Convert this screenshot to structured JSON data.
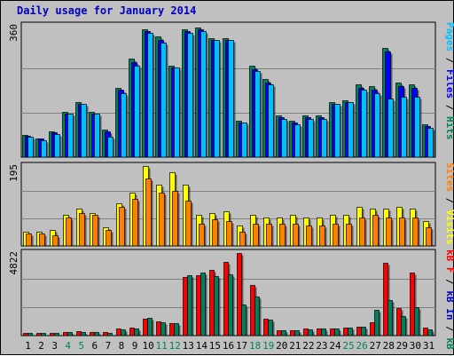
{
  "chart_data": {
    "title": "Daily usage for January 2014",
    "type": "bar",
    "categories": [
      "1",
      "2",
      "3",
      "4",
      "5",
      "6",
      "7",
      "8",
      "9",
      "10",
      "11",
      "12",
      "13",
      "14",
      "15",
      "16",
      "17",
      "18",
      "19",
      "20",
      "21",
      "22",
      "23",
      "24",
      "25",
      "26",
      "27",
      "28",
      "29",
      "30",
      "31"
    ],
    "weekend_days": [
      "4",
      "5",
      "11",
      "12",
      "18",
      "19",
      "25",
      "26"
    ],
    "colors": {
      "hits": "#00805c",
      "files": "#0000ff",
      "pages": "#00c0ff",
      "visits": "#ffff00",
      "sites": "#ff8000",
      "kb_out": "#ff0000",
      "kb_in": "#00805c",
      "kb_f": "#ff0000",
      "title": "#0000c0",
      "weekend_label": "#00805c",
      "weekday_label": "#000000",
      "panel": "#c0c0c0",
      "grid": "#808080"
    },
    "panels": [
      {
        "ymax_label": "360",
        "ylim": [
          0,
          360
        ],
        "right_labels": [
          {
            "text": "Pages",
            "color": "#00c0ff"
          },
          {
            "text": " / ",
            "color": "#000000"
          },
          {
            "text": "Files",
            "color": "#0000ff"
          },
          {
            "text": " / ",
            "color": "#000000"
          },
          {
            "text": "Hits",
            "color": "#00805c"
          }
        ],
        "series": [
          {
            "name": "Hits",
            "color": "#00805c",
            "values": [
              60,
              52,
              70,
              125,
              150,
              125,
              75,
              190,
              270,
              350,
              330,
              250,
              350,
              355,
              325,
              325,
              100,
              250,
              215,
              115,
              100,
              115,
              115,
              150,
              155,
              200,
              195,
              300,
              205,
              200,
              90
            ]
          },
          {
            "name": "Files",
            "color": "#0000ff",
            "values": [
              58,
              50,
              68,
              120,
              145,
              120,
              70,
              185,
              260,
              345,
              320,
              245,
              345,
              350,
              320,
              320,
              95,
              240,
              205,
              110,
              95,
              110,
              110,
              145,
              150,
              190,
              185,
              290,
              195,
              190,
              85
            ]
          },
          {
            "name": "Pages",
            "color": "#00c0ff",
            "values": [
              55,
              47,
              63,
              118,
              145,
              118,
              55,
              175,
              250,
              340,
              315,
              245,
              340,
              345,
              320,
              320,
              95,
              235,
              200,
              105,
              90,
              105,
              105,
              145,
              150,
              185,
              175,
              160,
              165,
              165,
              80
            ]
          }
        ]
      },
      {
        "ymax_label": "195",
        "ylim": [
          0,
          195
        ],
        "right_labels": [
          {
            "text": "Sites",
            "color": "#ff8000"
          },
          {
            "text": " / ",
            "color": "#000000"
          },
          {
            "text": "Visits",
            "color": "#ffff00"
          }
        ],
        "series": [
          {
            "name": "Visits",
            "color": "#ffff00",
            "values": [
              35,
              35,
              40,
              75,
              90,
              80,
              45,
              105,
              130,
              195,
              150,
              180,
              150,
              75,
              80,
              85,
              50,
              75,
              70,
              70,
              75,
              70,
              70,
              75,
              75,
              95,
              90,
              90,
              95,
              90,
              60
            ]
          },
          {
            "name": "Sites",
            "color": "#ff8000",
            "values": [
              30,
              30,
              25,
              70,
              80,
              75,
              40,
              95,
              115,
              165,
              130,
              135,
              110,
              55,
              65,
              60,
              35,
              55,
              55,
              55,
              55,
              50,
              50,
              55,
              55,
              70,
              75,
              70,
              70,
              70,
              45
            ]
          }
        ]
      },
      {
        "ymax_label": "4822",
        "ylim": [
          0,
          4822
        ],
        "right_labels": [
          {
            "text": "kB F",
            "color": "#ff0000"
          },
          {
            "text": " / ",
            "color": "#000000"
          },
          {
            "text": "kB In",
            "color": "#0000c0"
          },
          {
            "text": " / ",
            "color": "#000000"
          },
          {
            "text": "kB Out",
            "color": "#00805c"
          }
        ],
        "series": [
          {
            "name": "kB F",
            "color": "#ff0000",
            "values": [
              180,
              160,
              150,
              220,
              250,
              230,
              200,
              420,
              450,
              1000,
              850,
              700,
              3400,
              3500,
              3850,
              4300,
              4822,
              2950,
              1000,
              300,
              310,
              400,
              400,
              430,
              450,
              500,
              800,
              4250,
              1600,
              3700,
              450
            ]
          },
          {
            "name": "kB Out",
            "color": "#00805c",
            "values": [
              160,
              150,
              140,
              200,
              230,
              220,
              180,
              380,
              420,
              1050,
              800,
              700,
              3500,
              3700,
              3450,
              3600,
              1800,
              2300,
              950,
              310,
              300,
              350,
              400,
              430,
              450,
              500,
              1500,
              2050,
              1150,
              1650,
              370
            ]
          }
        ]
      }
    ]
  }
}
